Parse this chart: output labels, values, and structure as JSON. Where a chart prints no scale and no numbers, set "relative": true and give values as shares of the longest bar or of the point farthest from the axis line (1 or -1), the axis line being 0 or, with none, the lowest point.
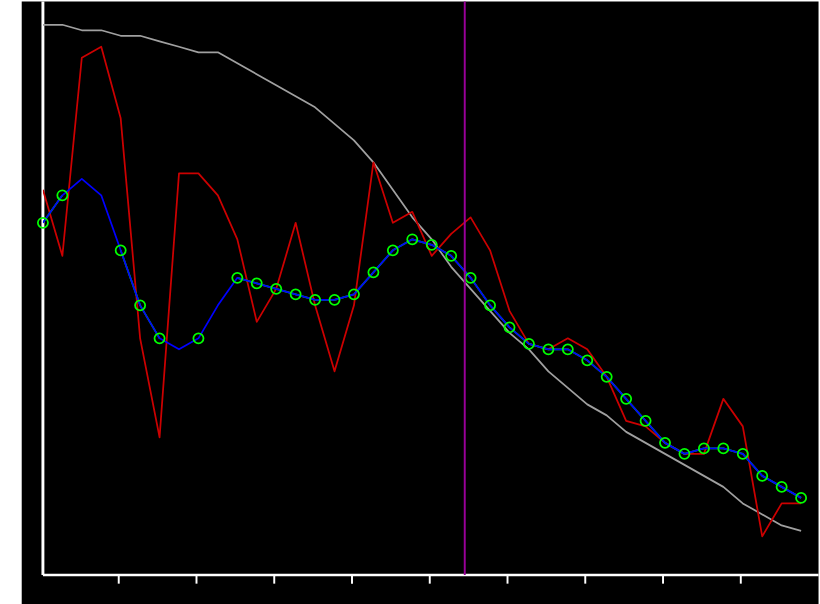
{
  "chart_data": {
    "type": "line",
    "relative": true,
    "categories": [
      null,
      null,
      null,
      null,
      null,
      null,
      null,
      null,
      null,
      null,
      null,
      null,
      null,
      null,
      null,
      null,
      null,
      null,
      null,
      null,
      null,
      null,
      null,
      null,
      null,
      null,
      null,
      null,
      null,
      null,
      null,
      null,
      null,
      null,
      null,
      null,
      null,
      null,
      null,
      null
    ],
    "series": [
      {
        "color": "#a0a0a0",
        "values": [
          1.0,
          1.0,
          0.99,
          0.99,
          0.98,
          0.98,
          0.97,
          0.96,
          0.95,
          0.95,
          0.93,
          0.91,
          0.89,
          0.87,
          0.85,
          0.82,
          0.79,
          0.75,
          0.7,
          0.65,
          0.61,
          0.56,
          0.52,
          0.48,
          0.44,
          0.41,
          0.37,
          0.34,
          0.31,
          0.29,
          0.26,
          0.24,
          0.22,
          0.2,
          0.18,
          0.16,
          0.13,
          0.11,
          0.09,
          0.08
        ]
      },
      {
        "color": "#cc0000",
        "values": [
          0.7,
          0.58,
          0.94,
          0.96,
          0.83,
          0.43,
          0.25,
          0.73,
          0.73,
          0.69,
          0.61,
          0.46,
          0.52,
          0.64,
          0.49,
          0.37,
          0.49,
          0.75,
          0.64,
          0.66,
          0.58,
          0.62,
          0.65,
          0.59,
          0.48,
          0.42,
          0.41,
          0.43,
          0.41,
          0.36,
          0.28,
          0.27,
          0.24,
          0.22,
          0.22,
          0.32,
          0.27,
          0.07,
          0.13,
          0.13
        ]
      },
      {
        "marker": "circle",
        "color": "#00ff00",
        "values": [
          0.64,
          0.69,
          null,
          null,
          0.59,
          0.49,
          0.43,
          null,
          0.43,
          null,
          0.54,
          0.53,
          0.52,
          0.51,
          0.5,
          0.5,
          0.51,
          0.55,
          0.59,
          0.61,
          0.6,
          0.58,
          0.54,
          0.49,
          0.45,
          0.42,
          0.41,
          0.41,
          0.39,
          0.36,
          0.32,
          0.28,
          0.24,
          0.22,
          0.23,
          0.23,
          0.22,
          0.18,
          0.16,
          0.14
        ]
      },
      {
        "color": "#0000ff",
        "values": [
          0.64,
          0.69,
          0.72,
          0.69,
          0.59,
          0.49,
          0.43,
          0.41,
          0.43,
          0.49,
          0.54,
          0.53,
          0.52,
          0.51,
          0.5,
          0.5,
          0.51,
          0.55,
          0.59,
          0.61,
          0.6,
          0.58,
          0.54,
          0.49,
          0.45,
          0.42,
          0.41,
          0.41,
          0.39,
          0.36,
          0.32,
          0.28,
          0.24,
          0.22,
          0.23,
          0.23,
          0.22,
          0.18,
          0.16,
          0.14
        ]
      }
    ]
  }
}
